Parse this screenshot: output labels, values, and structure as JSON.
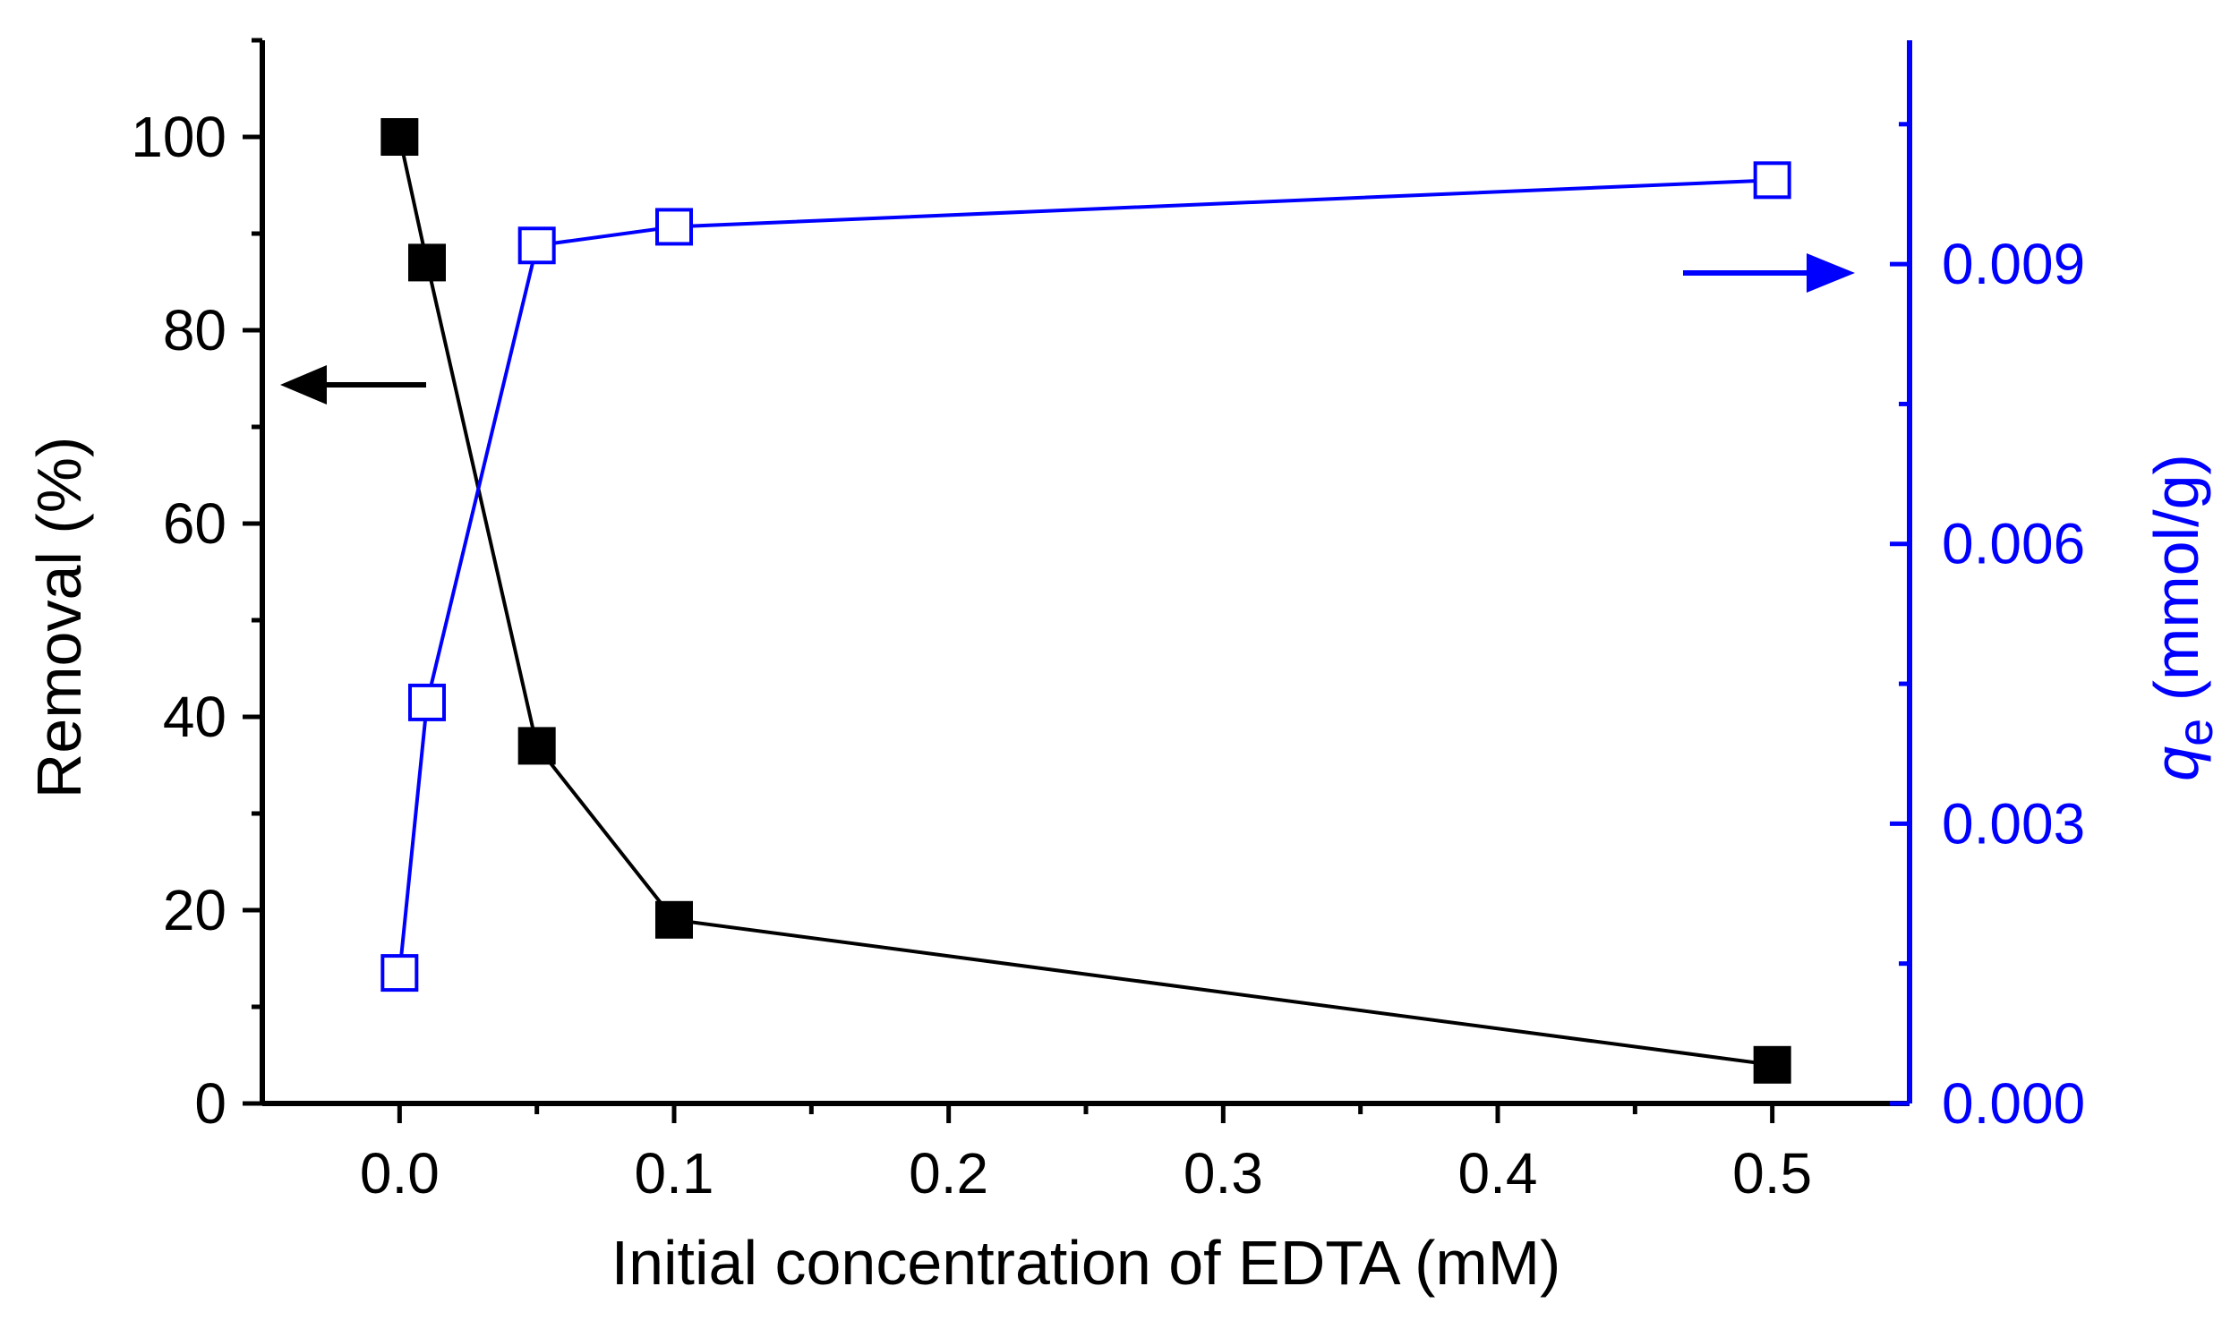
{
  "chart_data": {
    "type": "line",
    "title": "",
    "xlabel": "Initial concentration of EDTA (mM)",
    "ylabel_left": "Removal (%)",
    "ylabel_right": {
      "symbol": "q",
      "subscript": "e",
      "unit": " (mmol/g)"
    },
    "xlim": [
      -0.05,
      0.55
    ],
    "ylim_left": [
      0,
      110
    ],
    "ylim_right": [
      0,
      0.0114
    ],
    "x_ticks": [
      "0.0",
      "0.1",
      "0.2",
      "0.3",
      "0.4",
      "0.5"
    ],
    "y_left_ticks": [
      "0",
      "20",
      "40",
      "60",
      "80",
      "100"
    ],
    "y_right_ticks": [
      "0.000",
      "0.003",
      "0.006",
      "0.009"
    ],
    "colors": {
      "left": "#000000",
      "right": "#0000ff"
    },
    "series": [
      {
        "name": "Removal (%)",
        "axis": "left",
        "marker": "filled-square",
        "x": [
          0,
          0.01,
          0.05,
          0.1,
          0.5
        ],
        "values": [
          100,
          87,
          37,
          19,
          4
        ]
      },
      {
        "name": "qe (mmol/g)",
        "axis": "right",
        "marker": "open-square",
        "x": [
          0,
          0.01,
          0.05,
          0.1,
          0.5
        ],
        "values": [
          0.0014,
          0.0043,
          0.0092,
          0.0094,
          0.0099
        ]
      }
    ],
    "annotations": [
      {
        "name": "left-axis-arrow",
        "direction": "left",
        "color": "#000000"
      },
      {
        "name": "right-axis-arrow",
        "direction": "right",
        "color": "#0000ff"
      }
    ]
  }
}
